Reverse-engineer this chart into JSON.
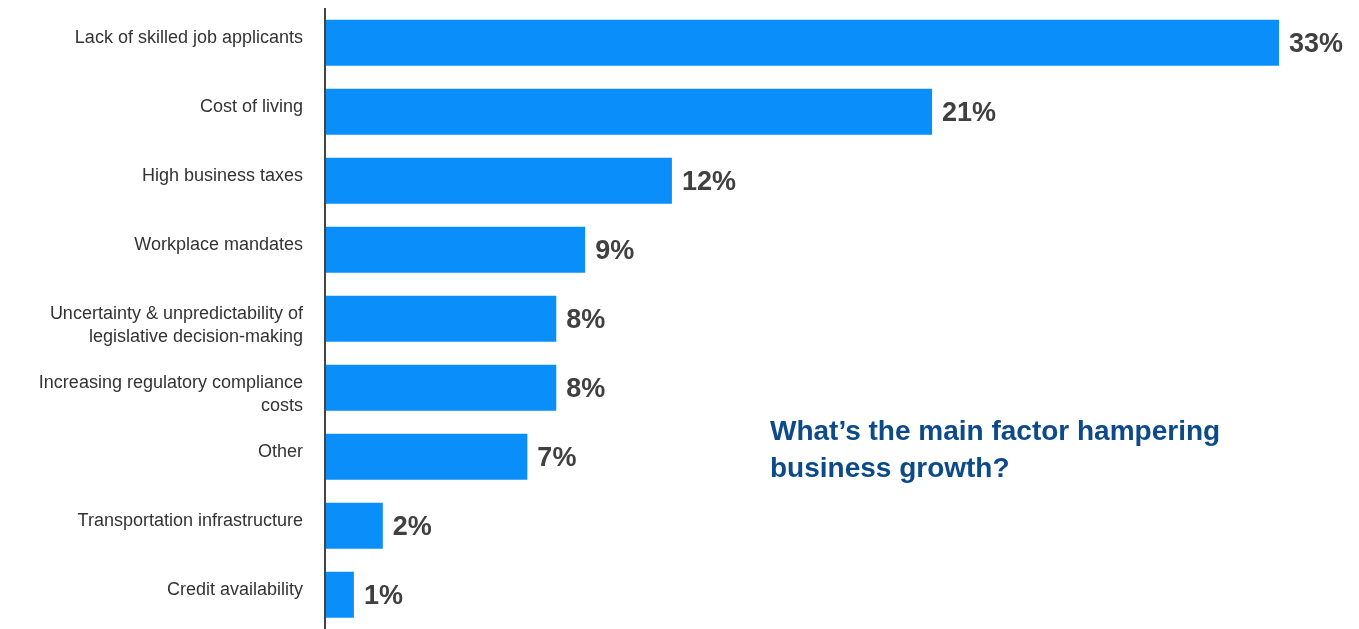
{
  "chart_data": {
    "type": "bar",
    "orientation": "horizontal",
    "title": "What’s the main factor hampering business growth?",
    "categories": [
      "Lack of skilled job applicants",
      "Cost of living",
      "High business taxes",
      "Workplace mandates",
      "Uncertainty & unpredictability of legislative decision-making",
      "Increasing regulatory compliance costs",
      "Other",
      "Transportation infrastructure",
      "Credit availability"
    ],
    "values": [
      33,
      21,
      12,
      9,
      8,
      8,
      7,
      2,
      1
    ],
    "value_labels": [
      "33%",
      "21%",
      "12%",
      "9%",
      "8%",
      "8%",
      "7%",
      "2%",
      "1%"
    ],
    "color": "#0a8ffa"
  }
}
